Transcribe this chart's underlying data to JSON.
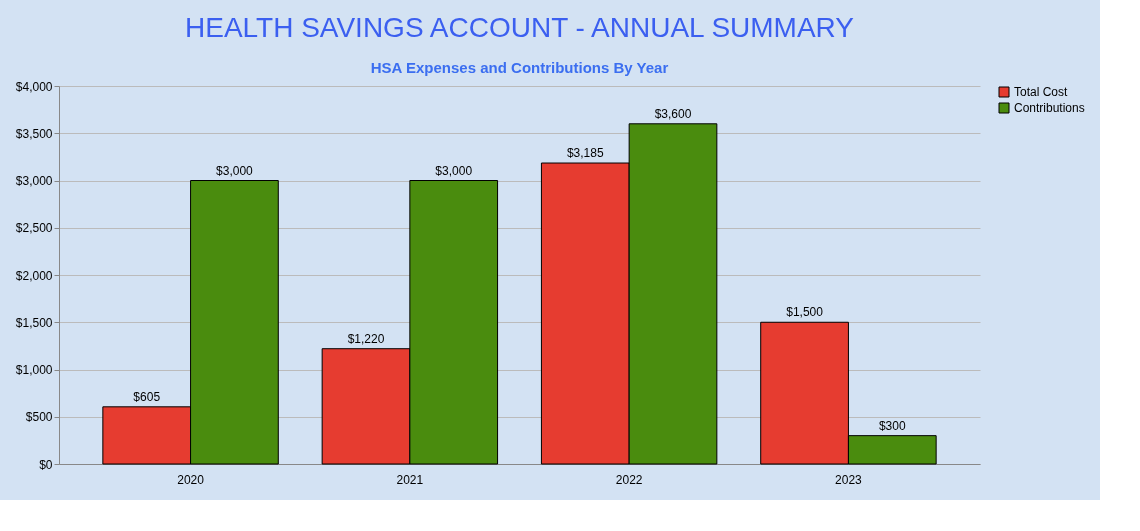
{
  "chart_data": {
    "type": "bar",
    "title": "HEALTH SAVINGS ACCOUNT - ANNUAL SUMMARY",
    "subtitle": "HSA Expenses and Contributions By Year",
    "categories": [
      "2020",
      "2021",
      "2022",
      "2023"
    ],
    "series": [
      {
        "name": "Total Cost",
        "color": "#e63c30",
        "values": [
          605,
          1220,
          3185,
          1500
        ],
        "value_labels": [
          "$605",
          "$1,220",
          "$3,185",
          "$1,500"
        ]
      },
      {
        "name": "Contributions",
        "color": "#4a8c0e",
        "values": [
          3000,
          3000,
          3600,
          300
        ],
        "value_labels": [
          "$3,000",
          "$3,000",
          "$3,600",
          "$300"
        ]
      }
    ],
    "ylim": [
      0,
      4000
    ],
    "yticks": [
      {
        "value": 0,
        "label": "$0"
      },
      {
        "value": 500,
        "label": "$500"
      },
      {
        "value": 1000,
        "label": "$1,000"
      },
      {
        "value": 1500,
        "label": "$1,500"
      },
      {
        "value": 2000,
        "label": "$2,000"
      },
      {
        "value": 2500,
        "label": "$2,500"
      },
      {
        "value": 3000,
        "label": "$3,000"
      },
      {
        "value": 3500,
        "label": "$3,500"
      },
      {
        "value": 4000,
        "label": "$4,000"
      }
    ],
    "grid": "y",
    "legend": "right"
  }
}
